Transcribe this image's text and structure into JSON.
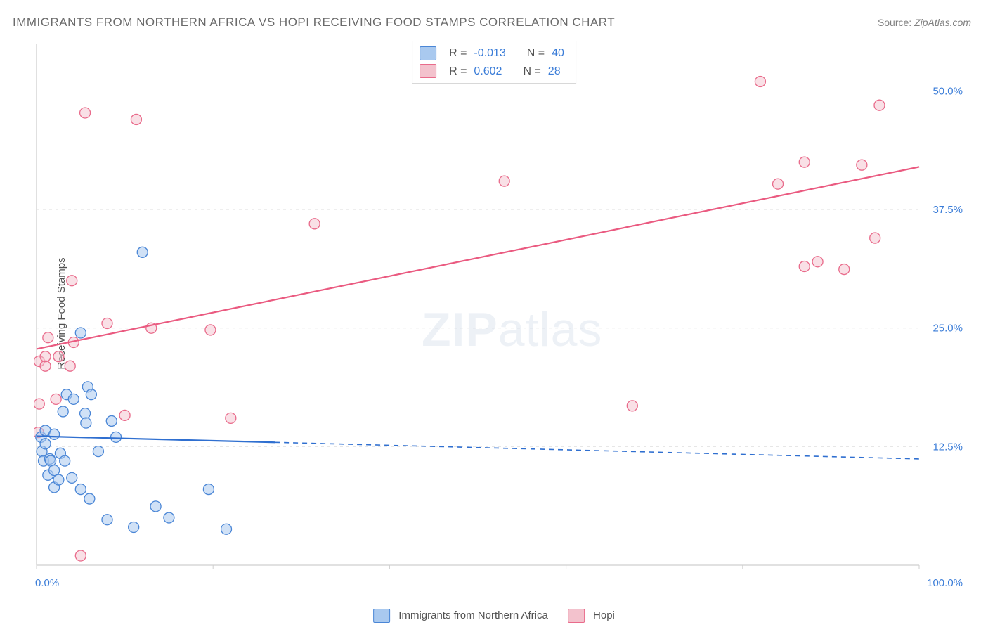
{
  "title": "IMMIGRANTS FROM NORTHERN AFRICA VS HOPI RECEIVING FOOD STAMPS CORRELATION CHART",
  "source_label": "Source:",
  "source_value": "ZipAtlas.com",
  "ylabel": "Receiving Food Stamps",
  "watermark": "ZIPatlas",
  "chart": {
    "type": "scatter",
    "xlim": [
      0,
      100
    ],
    "ylim": [
      0,
      55
    ],
    "xticks": [
      0,
      20,
      40,
      60,
      80,
      100
    ],
    "xtick_labels": [
      "0.0%",
      "",
      "",
      "",
      "",
      "100.0%"
    ],
    "yticks": [
      12.5,
      25.0,
      37.5,
      50.0
    ],
    "ytick_labels": [
      "12.5%",
      "25.0%",
      "37.5%",
      "50.0%"
    ],
    "gridline_color": "#e3e3e3",
    "axis_color": "#cfcfcf",
    "background_color": "#ffffff",
    "marker_radius": 7.5,
    "marker_stroke_width": 1.3,
    "series": [
      {
        "name": "Immigrants from Northern Africa",
        "fill_color": "#a9c9ef",
        "stroke_color": "#4a86d6",
        "fill_opacity": 0.55,
        "R": -0.013,
        "N": 40,
        "trend": {
          "x1": 0,
          "y1": 13.6,
          "x2": 100,
          "y2": 11.2,
          "solid_until_x": 27,
          "stroke": "#2f6fd0",
          "stroke_width": 2.2
        },
        "points": [
          [
            0.5,
            13.5
          ],
          [
            0.6,
            12.0
          ],
          [
            0.8,
            11.0
          ],
          [
            1.0,
            14.2
          ],
          [
            1.0,
            12.8
          ],
          [
            1.3,
            9.5
          ],
          [
            1.5,
            11.2
          ],
          [
            1.6,
            11.0
          ],
          [
            2.0,
            10.0
          ],
          [
            2.0,
            13.8
          ],
          [
            2.0,
            8.2
          ],
          [
            2.5,
            9.0
          ],
          [
            2.7,
            11.8
          ],
          [
            3.0,
            16.2
          ],
          [
            3.2,
            11.0
          ],
          [
            3.4,
            18.0
          ],
          [
            4.0,
            9.2
          ],
          [
            4.2,
            17.5
          ],
          [
            5.0,
            8.0
          ],
          [
            5.0,
            24.5
          ],
          [
            5.5,
            16.0
          ],
          [
            5.6,
            15.0
          ],
          [
            5.8,
            18.8
          ],
          [
            6.0,
            7.0
          ],
          [
            6.2,
            18.0
          ],
          [
            7.0,
            12.0
          ],
          [
            8.0,
            4.8
          ],
          [
            8.5,
            15.2
          ],
          [
            9.0,
            13.5
          ],
          [
            11.0,
            4.0
          ],
          [
            12.0,
            33.0
          ],
          [
            13.5,
            6.2
          ],
          [
            15.0,
            5.0
          ],
          [
            19.5,
            8.0
          ],
          [
            21.5,
            3.8
          ]
        ]
      },
      {
        "name": "Hopi",
        "fill_color": "#f3c2cd",
        "stroke_color": "#e96b8b",
        "fill_opacity": 0.5,
        "R": 0.602,
        "N": 28,
        "trend": {
          "x1": 0,
          "y1": 22.8,
          "x2": 100,
          "y2": 42.0,
          "stroke": "#ea5a80",
          "stroke_width": 2.2
        },
        "points": [
          [
            0.2,
            14.0
          ],
          [
            0.3,
            17.0
          ],
          [
            0.3,
            21.5
          ],
          [
            1.0,
            21.0
          ],
          [
            1.0,
            22.0
          ],
          [
            1.3,
            24.0
          ],
          [
            2.2,
            17.5
          ],
          [
            2.5,
            22.0
          ],
          [
            3.8,
            21.0
          ],
          [
            4.0,
            30.0
          ],
          [
            4.2,
            23.5
          ],
          [
            5.0,
            1.0
          ],
          [
            5.5,
            47.7
          ],
          [
            8.0,
            25.5
          ],
          [
            10.0,
            15.8
          ],
          [
            11.3,
            47.0
          ],
          [
            13.0,
            25.0
          ],
          [
            19.7,
            24.8
          ],
          [
            22.0,
            15.5
          ],
          [
            31.5,
            36.0
          ],
          [
            53.0,
            40.5
          ],
          [
            67.5,
            16.8
          ],
          [
            82.0,
            51.0
          ],
          [
            84.0,
            40.2
          ],
          [
            87.0,
            31.5
          ],
          [
            87.0,
            42.5
          ],
          [
            88.5,
            32.0
          ],
          [
            91.5,
            31.2
          ],
          [
            93.5,
            42.2
          ],
          [
            95.0,
            34.5
          ],
          [
            95.5,
            48.5
          ]
        ]
      }
    ]
  },
  "bottom_legend": {
    "series1": "Immigrants from Northern Africa",
    "series2": "Hopi"
  },
  "top_legend": {
    "labels": {
      "R": "R =",
      "N": "N ="
    }
  }
}
